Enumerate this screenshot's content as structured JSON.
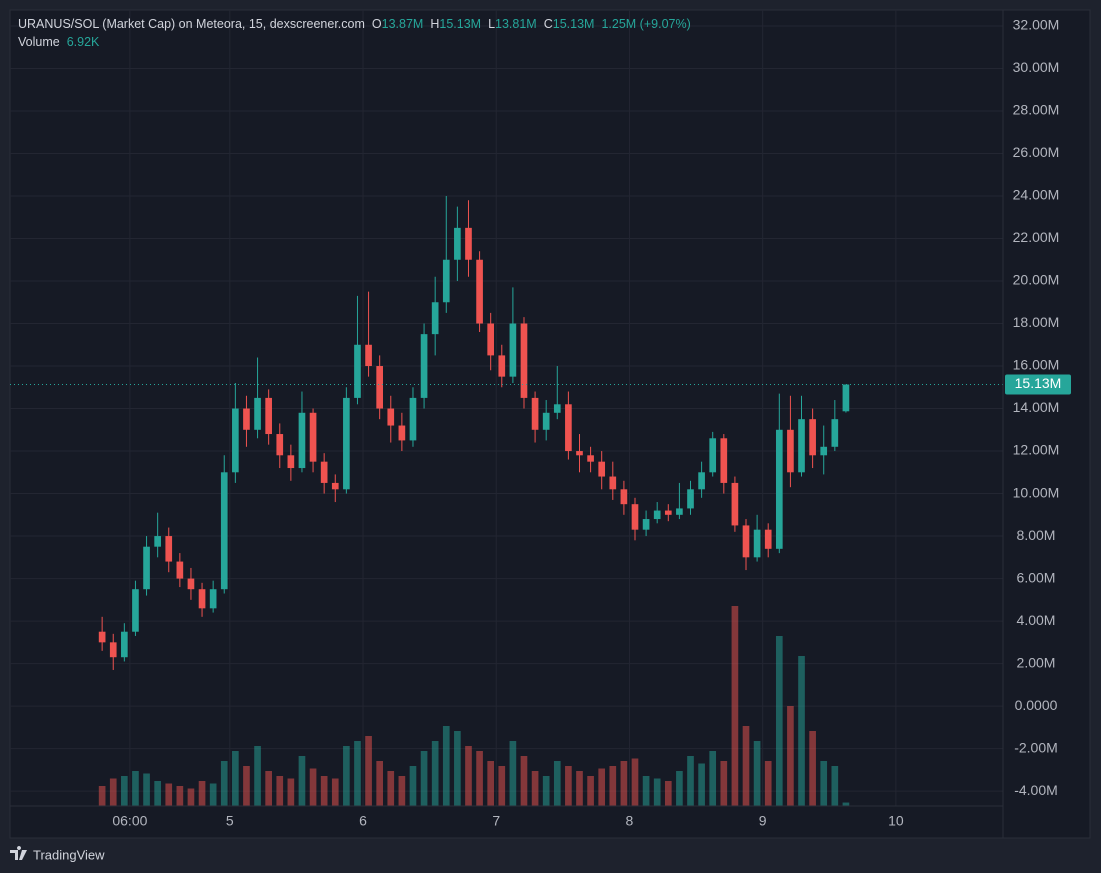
{
  "header": {
    "title": "URANUS/SOL (Market Cap) on Meteora, 15, dexscreener.com",
    "o_key": "O",
    "o": "13.87M",
    "h_key": "H",
    "h": "15.13M",
    "l_key": "L",
    "l": "13.81M",
    "c_key": "C",
    "c": "15.13M",
    "change": "1.25M (+9.07%)",
    "volume_key": "Volume",
    "volume": "6.92K"
  },
  "branding": "TradingView",
  "chart_data": {
    "type": "candlestick",
    "up_color": "#26a69a",
    "down_color": "#ef5350",
    "grid": true,
    "last_price_label": "15.13M",
    "xlim": [
      -15.6,
      163.3
    ],
    "ylim": [
      -4.7,
      32.75
    ],
    "xticks": [
      {
        "value": 6,
        "label": "06:00"
      },
      {
        "value": 24,
        "label": "5"
      },
      {
        "value": 48,
        "label": "6"
      },
      {
        "value": 72,
        "label": "7"
      },
      {
        "value": 96,
        "label": "8"
      },
      {
        "value": 120,
        "label": "9"
      },
      {
        "value": 144,
        "label": "10"
      }
    ],
    "yticks": [
      {
        "value": 32,
        "label": "32.00M"
      },
      {
        "value": 30,
        "label": "30.00M"
      },
      {
        "value": 28,
        "label": "28.00M"
      },
      {
        "value": 26,
        "label": "26.00M"
      },
      {
        "value": 24,
        "label": "24.00M"
      },
      {
        "value": 22,
        "label": "22.00M"
      },
      {
        "value": 20,
        "label": "20.00M"
      },
      {
        "value": 18,
        "label": "18.00M"
      },
      {
        "value": 16,
        "label": "16.00M"
      },
      {
        "value": 14,
        "label": "14.00M"
      },
      {
        "value": 12,
        "label": "12.00M"
      },
      {
        "value": 10,
        "label": "10.00M"
      },
      {
        "value": 8,
        "label": "8.00M"
      },
      {
        "value": 6,
        "label": "6.00M"
      },
      {
        "value": 4,
        "label": "4.00M"
      },
      {
        "value": 2,
        "label": "2.00M"
      },
      {
        "value": 0,
        "label": "0.0000"
      },
      {
        "value": -2,
        "label": "-2.00M"
      },
      {
        "value": -4,
        "label": "-4.00M"
      }
    ],
    "x": [
      1,
      3,
      5,
      7,
      9,
      11,
      13,
      15,
      17,
      19,
      21,
      23,
      25,
      27,
      29,
      31,
      33,
      35,
      37,
      39,
      41,
      43,
      45,
      47,
      49,
      51,
      53,
      55,
      57,
      59,
      61,
      63,
      65,
      67,
      69,
      71,
      73,
      75,
      77,
      79,
      81,
      83,
      85,
      87,
      89,
      91,
      93,
      95,
      97,
      99,
      101,
      103,
      105,
      107,
      109,
      111,
      113,
      115,
      117,
      119,
      121,
      123,
      125,
      127,
      129,
      131,
      133,
      135
    ],
    "open": [
      3.5,
      3.0,
      2.3,
      3.5,
      5.5,
      7.5,
      8.0,
      6.8,
      6.0,
      5.5,
      4.6,
      5.5,
      11.0,
      14.0,
      13.0,
      14.5,
      12.8,
      11.8,
      11.2,
      13.8,
      11.5,
      10.5,
      10.2,
      14.5,
      17.0,
      16.0,
      14.0,
      13.2,
      12.5,
      14.5,
      17.5,
      19.0,
      21.0,
      22.5,
      21.0,
      18.0,
      16.5,
      15.5,
      18.0,
      14.5,
      13.0,
      13.8,
      14.2,
      12.0,
      11.8,
      11.5,
      10.8,
      10.2,
      9.5,
      8.3,
      8.8,
      9.2,
      9.0,
      9.3,
      10.2,
      11.0,
      12.6,
      10.5,
      8.5,
      7.0,
      8.3,
      7.4,
      13.0,
      11.0,
      13.5,
      11.8,
      12.2,
      13.87
    ],
    "high": [
      4.2,
      3.4,
      3.9,
      5.9,
      8.0,
      9.1,
      8.4,
      7.2,
      6.5,
      5.8,
      5.9,
      11.8,
      15.2,
      14.6,
      16.4,
      14.9,
      13.3,
      12.3,
      14.8,
      14.0,
      11.9,
      10.9,
      15.0,
      19.3,
      19.5,
      16.5,
      14.6,
      13.8,
      15.0,
      18.0,
      20.2,
      24.0,
      23.5,
      23.8,
      21.4,
      18.5,
      17.0,
      19.7,
      18.3,
      14.8,
      14.4,
      16.0,
      14.8,
      12.8,
      12.2,
      12.0,
      11.5,
      10.6,
      9.8,
      9.2,
      9.6,
      9.5,
      10.5,
      10.6,
      11.5,
      12.9,
      12.8,
      10.8,
      8.8,
      9.0,
      8.6,
      14.7,
      14.6,
      14.6,
      14.0,
      13.2,
      14.4,
      15.13
    ],
    "low": [
      2.6,
      1.7,
      2.1,
      3.3,
      5.2,
      7.0,
      6.3,
      5.6,
      5.0,
      4.2,
      4.4,
      5.3,
      10.5,
      12.2,
      12.6,
      12.3,
      11.2,
      10.6,
      11.0,
      11.0,
      10.0,
      9.6,
      10.0,
      14.2,
      15.5,
      13.5,
      12.4,
      12.0,
      12.2,
      14.0,
      16.5,
      18.5,
      20.0,
      20.2,
      17.6,
      15.8,
      15.0,
      15.2,
      14.0,
      12.4,
      12.5,
      13.5,
      11.6,
      11.0,
      11.0,
      10.2,
      9.7,
      9.0,
      7.8,
      8.0,
      8.6,
      8.7,
      8.8,
      9.0,
      9.8,
      10.8,
      10.0,
      8.2,
      6.4,
      6.8,
      7.0,
      7.2,
      10.3,
      10.8,
      11.2,
      10.9,
      12.0,
      13.81
    ],
    "close": [
      3.0,
      2.3,
      3.5,
      5.5,
      7.5,
      8.0,
      6.8,
      6.0,
      5.5,
      4.6,
      5.5,
      11.0,
      14.0,
      13.0,
      14.5,
      12.8,
      11.8,
      11.2,
      13.8,
      11.5,
      10.5,
      10.2,
      14.5,
      17.0,
      16.0,
      14.0,
      13.2,
      12.5,
      14.5,
      17.5,
      19.0,
      21.0,
      22.5,
      21.0,
      18.0,
      16.5,
      15.5,
      18.0,
      14.5,
      13.0,
      13.8,
      14.2,
      12.0,
      11.8,
      11.5,
      10.8,
      10.2,
      9.5,
      8.3,
      8.8,
      9.2,
      9.0,
      9.3,
      10.2,
      11.0,
      12.6,
      10.5,
      8.5,
      7.0,
      8.3,
      7.4,
      13.0,
      11.0,
      13.5,
      11.8,
      12.2,
      13.5,
      15.13
    ],
    "volume": [
      40,
      55,
      60,
      70,
      65,
      50,
      45,
      40,
      35,
      50,
      45,
      90,
      110,
      80,
      120,
      70,
      60,
      55,
      100,
      75,
      60,
      55,
      120,
      130,
      140,
      90,
      70,
      60,
      80,
      110,
      130,
      160,
      150,
      120,
      110,
      90,
      80,
      130,
      100,
      70,
      60,
      90,
      80,
      70,
      60,
      75,
      80,
      90,
      95,
      60,
      55,
      50,
      70,
      100,
      85,
      110,
      90,
      400,
      160,
      130,
      90,
      340,
      200,
      300,
      150,
      90,
      80,
      6.92
    ]
  }
}
